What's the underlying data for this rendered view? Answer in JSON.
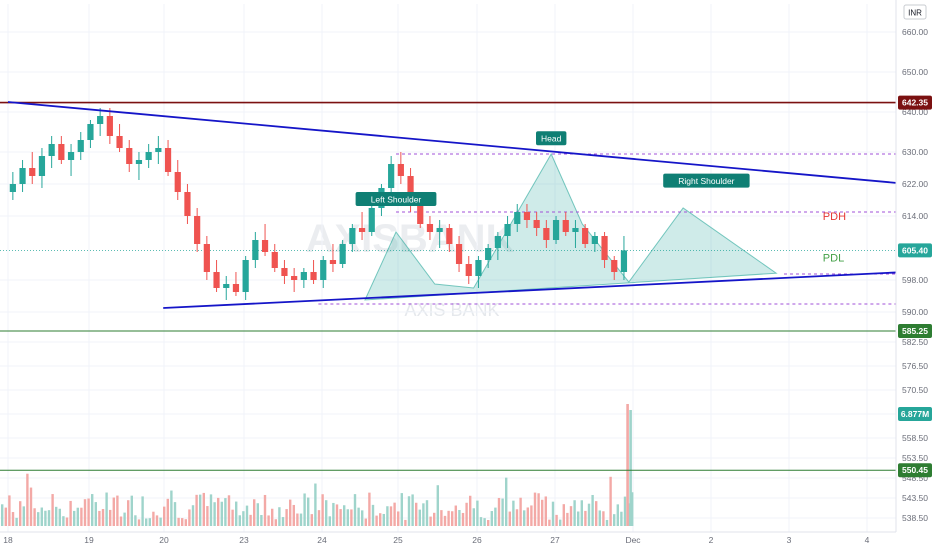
{
  "currency_label": "INR",
  "watermark": {
    "symbol": "AXISBANK",
    "name": "AXIS BANK"
  },
  "chart_data": {
    "type": "candlestick",
    "y_range": [
      535,
      667
    ],
    "price_ticks": [
      "660.00",
      "650.00",
      "640.00",
      "630.00",
      "622.00",
      "614.00",
      "598.00",
      "590.00",
      "582.50",
      "576.50",
      "570.50",
      "564.50",
      "558.50",
      "553.50",
      "548.50",
      "543.50",
      "538.50"
    ],
    "x_ticks": [
      "18",
      "19",
      "20",
      "23",
      "24",
      "25",
      "26",
      "27",
      "Dec",
      "2",
      "3",
      "4"
    ],
    "tags": [
      {
        "label": "642.35",
        "value": 642.35,
        "color": "#7b1111",
        "line": "solid"
      },
      {
        "label": "605.40",
        "value": 605.4,
        "color": "#26a69a",
        "line": "dotted"
      },
      {
        "label": "585.25",
        "value": 585.25,
        "color": "#2e7d32",
        "line": "solid"
      },
      {
        "label": "6.877M",
        "value": 564.5,
        "color": "#26a69a",
        "line": "none"
      },
      {
        "label": "550.45",
        "value": 550.45,
        "color": "#2e7d32",
        "line": "solid"
      }
    ],
    "annotations": [
      {
        "text": "Head",
        "session": 25,
        "value": 633.2
      },
      {
        "text": "Left Shoulder",
        "session": 23,
        "value": 618.0
      },
      {
        "text": "Right Shoulder",
        "session": 27,
        "value": 622.6
      },
      {
        "text": "PDH",
        "session": 28.5,
        "value": 614.0,
        "color": "#e53935"
      },
      {
        "text": "PDL",
        "session": 28.5,
        "value": 603.6,
        "color": "#43a047"
      }
    ],
    "trendlines": [
      {
        "name": "upper",
        "from": [
          18,
          642.5
        ],
        "to": [
          30,
          621.3
        ],
        "color": "#1515c8"
      },
      {
        "name": "lower",
        "from": [
          20,
          591.0
        ],
        "to": [
          30,
          600.4
        ],
        "color": "#1515c8"
      }
    ],
    "dashed_levels": [
      {
        "value": 629.5,
        "from": 23,
        "to": 30
      },
      {
        "value": 615.0,
        "from": 23,
        "to": 30
      },
      {
        "value": 599.5,
        "from": 28,
        "to": 31
      },
      {
        "value": 592.0,
        "from": 22,
        "to": 30
      }
    ],
    "pattern": [
      [
        22.6,
        593
      ],
      [
        23.0,
        610
      ],
      [
        23.5,
        597
      ],
      [
        24.0,
        596
      ],
      [
        25.0,
        629.5
      ],
      [
        25.4,
        612
      ],
      [
        26.0,
        597.5
      ],
      [
        26.7,
        616
      ],
      [
        27.9,
        599.7
      ]
    ],
    "volume_ceiling": 6.877,
    "sessions": [
      {
        "label": "18",
        "candles": [
          [
            620,
            625,
            618,
            622
          ],
          [
            622,
            628,
            620,
            626
          ],
          [
            626,
            630,
            622,
            624
          ],
          [
            624,
            631,
            621,
            629
          ],
          [
            629,
            634,
            626,
            632
          ],
          [
            632,
            634,
            627,
            628
          ],
          [
            628,
            632,
            624,
            630
          ],
          [
            630,
            635,
            628,
            633
          ]
        ]
      },
      {
        "label": "19",
        "candles": [
          [
            633,
            638,
            631,
            637
          ],
          [
            637,
            641,
            634,
            639
          ],
          [
            639,
            641,
            632,
            634
          ],
          [
            634,
            637,
            630,
            631
          ],
          [
            631,
            633,
            625,
            627
          ],
          [
            627,
            630,
            623,
            628
          ],
          [
            628,
            632,
            626,
            630
          ],
          [
            630,
            634,
            627,
            631
          ]
        ]
      },
      {
        "label": "20",
        "candles": [
          [
            631,
            633,
            624,
            625
          ],
          [
            625,
            628,
            618,
            620
          ],
          [
            620,
            622,
            612,
            614
          ],
          [
            614,
            616,
            605,
            607
          ],
          [
            607,
            609,
            598,
            600
          ],
          [
            600,
            603,
            595,
            596
          ],
          [
            596,
            599,
            593,
            597
          ],
          [
            597,
            600,
            594,
            595
          ]
        ]
      },
      {
        "label": "23",
        "candles": [
          [
            595,
            604,
            593,
            603
          ],
          [
            603,
            610,
            601,
            608
          ],
          [
            608,
            612,
            604,
            605
          ],
          [
            605,
            607,
            600,
            601
          ],
          [
            601,
            603,
            597,
            599
          ],
          [
            599,
            601,
            595,
            598
          ],
          [
            598,
            601,
            596,
            600
          ],
          [
            600,
            603,
            597,
            598
          ]
        ]
      },
      {
        "label": "24",
        "candles": [
          [
            598,
            604,
            596,
            603
          ],
          [
            603,
            607,
            600,
            602
          ],
          [
            602,
            608,
            601,
            607
          ],
          [
            607,
            612,
            605,
            611
          ],
          [
            611,
            615,
            608,
            610
          ],
          [
            610,
            617,
            609,
            616
          ],
          [
            616,
            622,
            614,
            621
          ],
          [
            621,
            629,
            619,
            627
          ]
        ]
      },
      {
        "label": "25",
        "candles": [
          [
            627,
            630,
            622,
            624
          ],
          [
            624,
            626,
            615,
            617
          ],
          [
            617,
            619,
            611,
            612
          ],
          [
            612,
            614,
            608,
            610
          ],
          [
            610,
            613,
            606,
            611
          ],
          [
            611,
            612,
            605,
            607
          ],
          [
            607,
            609,
            600,
            602
          ],
          [
            602,
            604,
            597,
            599
          ]
        ]
      },
      {
        "label": "26",
        "candles": [
          [
            599,
            604,
            596,
            603
          ],
          [
            603,
            607,
            601,
            606
          ],
          [
            606,
            610,
            603,
            609
          ],
          [
            609,
            614,
            606,
            612
          ],
          [
            612,
            617,
            610,
            615
          ],
          [
            615,
            617,
            611,
            613
          ],
          [
            613,
            615,
            609,
            611
          ],
          [
            611,
            613,
            606,
            608
          ]
        ]
      },
      {
        "label": "27",
        "candles": [
          [
            608,
            614,
            607,
            613
          ],
          [
            613,
            615,
            609,
            610
          ],
          [
            610,
            613,
            606,
            611
          ],
          [
            611,
            612,
            606,
            607
          ],
          [
            607,
            610,
            605,
            609
          ],
          [
            609,
            610,
            601,
            603
          ],
          [
            603,
            604,
            598,
            600
          ],
          [
            600,
            609,
            598,
            605.4
          ]
        ]
      }
    ]
  }
}
